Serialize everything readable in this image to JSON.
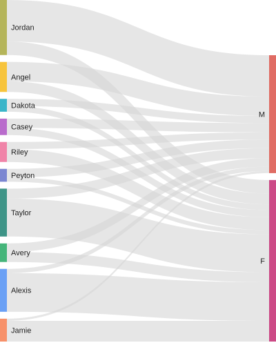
{
  "chart_data": {
    "type": "sankey",
    "title": "",
    "source_nodes": [
      {
        "name": "Jordan",
        "color": "#b5b55a"
      },
      {
        "name": "Angel",
        "color": "#f7c43c"
      },
      {
        "name": "Dakota",
        "color": "#3ab5c9"
      },
      {
        "name": "Casey",
        "color": "#b96ccc"
      },
      {
        "name": "Riley",
        "color": "#f084a8"
      },
      {
        "name": "Peyton",
        "color": "#7b86d1"
      },
      {
        "name": "Taylor",
        "color": "#3e9487"
      },
      {
        "name": "Avery",
        "color": "#45b57a"
      },
      {
        "name": "Alexis",
        "color": "#6aa0f5"
      },
      {
        "name": "Jamie",
        "color": "#f7916a"
      }
    ],
    "target_nodes": [
      {
        "name": "M",
        "color": "#e06c64"
      },
      {
        "name": "F",
        "color": "#cc4a86"
      }
    ],
    "links": [
      {
        "source": "Jordan",
        "target": "M",
        "value": 58
      },
      {
        "source": "Jordan",
        "target": "F",
        "value": 19
      },
      {
        "source": "Angel",
        "target": "M",
        "value": 27
      },
      {
        "source": "Angel",
        "target": "F",
        "value": 15
      },
      {
        "source": "Dakota",
        "target": "M",
        "value": 10
      },
      {
        "source": "Dakota",
        "target": "F",
        "value": 8
      },
      {
        "source": "Casey",
        "target": "M",
        "value": 13
      },
      {
        "source": "Casey",
        "target": "F",
        "value": 10
      },
      {
        "source": "Riley",
        "target": "M",
        "value": 10
      },
      {
        "source": "Riley",
        "target": "F",
        "value": 18
      },
      {
        "source": "Peyton",
        "target": "M",
        "value": 12
      },
      {
        "source": "Peyton",
        "target": "F",
        "value": 6
      },
      {
        "source": "Taylor",
        "target": "M",
        "value": 14
      },
      {
        "source": "Taylor",
        "target": "F",
        "value": 53
      },
      {
        "source": "Avery",
        "target": "M",
        "value": 12
      },
      {
        "source": "Avery",
        "target": "F",
        "value": 14
      },
      {
        "source": "Alexis",
        "target": "M",
        "value": 6
      },
      {
        "source": "Alexis",
        "target": "F",
        "value": 54
      },
      {
        "source": "Jamie",
        "target": "M",
        "value": 3
      },
      {
        "source": "Jamie",
        "target": "F",
        "value": 29
      }
    ]
  }
}
